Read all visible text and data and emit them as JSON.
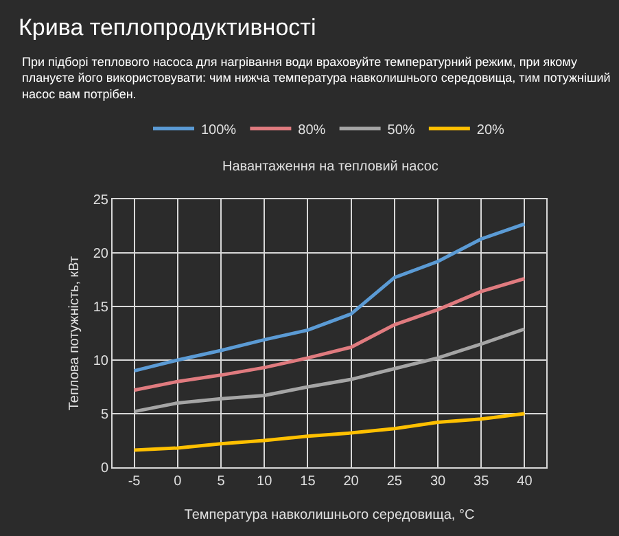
{
  "chart_data": {
    "type": "line",
    "title": "Крива теплопродуктивності",
    "subtitle": "При підборі теплового насоса для нагрівання води враховуйте температурний режим, при якому плануєте його використовувати: чим нижча температура навколишнього середовища, тим потужніший насос вам потрібен.",
    "xlabel": "Температура навколишнього середовища, °C",
    "ylabel": "Теплова потужність, кВт",
    "legend_title": "Навантаження на тепловий насос",
    "x": [
      -5,
      0,
      5,
      10,
      15,
      20,
      25,
      30,
      35,
      40
    ],
    "series": [
      {
        "name": "100%",
        "color": "#5b9bd5",
        "values": [
          9.0,
          10.0,
          10.9,
          11.9,
          12.8,
          14.3,
          17.7,
          19.2,
          21.3,
          22.7
        ]
      },
      {
        "name": "80%",
        "color": "#e07b7f",
        "values": [
          7.2,
          8.0,
          8.6,
          9.3,
          10.2,
          11.2,
          13.3,
          14.7,
          16.4,
          17.6
        ]
      },
      {
        "name": "50%",
        "color": "#a5a5a5",
        "values": [
          5.2,
          6.0,
          6.4,
          6.7,
          7.5,
          8.2,
          9.2,
          10.2,
          11.5,
          12.9
        ]
      },
      {
        "name": "20%",
        "color": "#ffc000",
        "values": [
          1.6,
          1.8,
          2.2,
          2.5,
          2.9,
          3.2,
          3.6,
          4.2,
          4.5,
          5.0
        ]
      }
    ],
    "xlim": [
      -7.5,
      42.5
    ],
    "xticks": [
      -5,
      0,
      5,
      10,
      15,
      20,
      25,
      30,
      35,
      40
    ],
    "ylim": [
      0,
      25
    ],
    "yticks": [
      0,
      5,
      10,
      15,
      20,
      25
    ],
    "grid": true,
    "legend": "top",
    "marker": "none",
    "line_style": "solid"
  }
}
